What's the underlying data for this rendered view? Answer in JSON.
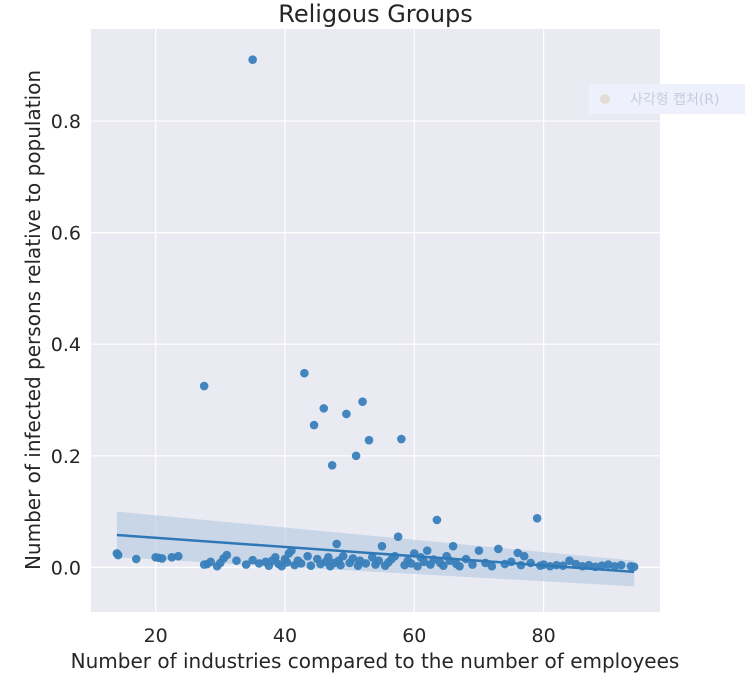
{
  "chart_data": {
    "type": "scatter",
    "title": "Religous Groups",
    "xlabel": "Number of industries compared to the number of employees",
    "ylabel": "Number of infected persons relative to population",
    "xlim": [
      10,
      98
    ],
    "ylim": [
      -0.08,
      0.965
    ],
    "xticks": [
      20,
      40,
      60,
      80
    ],
    "yticks": [
      0.0,
      0.2,
      0.4,
      0.6,
      0.8
    ],
    "ytick_labels": [
      "0.0",
      "0.2",
      "0.4",
      "0.6",
      "0.8"
    ],
    "grid": true,
    "colors": {
      "point": "#3a7fba",
      "line": "#2f78b6",
      "band": "#b9cde3",
      "background": "#eaeaf2",
      "grid": "#ffffff"
    },
    "regression": {
      "x": [
        14,
        94
      ],
      "y": [
        0.058,
        -0.008
      ],
      "ci_lower": [
        0.018,
        -0.034
      ],
      "ci_upper": [
        0.1,
        0.012
      ]
    },
    "points": [
      {
        "x": 14,
        "y": 0.025
      },
      {
        "x": 14.2,
        "y": 0.022
      },
      {
        "x": 17,
        "y": 0.015
      },
      {
        "x": 20,
        "y": 0.018
      },
      {
        "x": 20.5,
        "y": 0.017
      },
      {
        "x": 21,
        "y": 0.016
      },
      {
        "x": 22.5,
        "y": 0.018
      },
      {
        "x": 23.5,
        "y": 0.02
      },
      {
        "x": 27.5,
        "y": 0.325
      },
      {
        "x": 27.5,
        "y": 0.005
      },
      {
        "x": 28,
        "y": 0.006
      },
      {
        "x": 28.5,
        "y": 0.01
      },
      {
        "x": 29.5,
        "y": 0.002
      },
      {
        "x": 30,
        "y": 0.008
      },
      {
        "x": 30.5,
        "y": 0.016
      },
      {
        "x": 31,
        "y": 0.022
      },
      {
        "x": 32.5,
        "y": 0.012
      },
      {
        "x": 34,
        "y": 0.005
      },
      {
        "x": 35,
        "y": 0.91
      },
      {
        "x": 35,
        "y": 0.013
      },
      {
        "x": 36,
        "y": 0.007
      },
      {
        "x": 37,
        "y": 0.01
      },
      {
        "x": 37.5,
        "y": 0.003
      },
      {
        "x": 38,
        "y": 0.012
      },
      {
        "x": 38.5,
        "y": 0.018
      },
      {
        "x": 39,
        "y": 0.006
      },
      {
        "x": 39.5,
        "y": 0.002
      },
      {
        "x": 40,
        "y": 0.015
      },
      {
        "x": 40.3,
        "y": 0.009
      },
      {
        "x": 40.6,
        "y": 0.025
      },
      {
        "x": 41,
        "y": 0.03
      },
      {
        "x": 41.5,
        "y": 0.004
      },
      {
        "x": 42,
        "y": 0.012
      },
      {
        "x": 42.5,
        "y": 0.007
      },
      {
        "x": 43,
        "y": 0.348
      },
      {
        "x": 43.5,
        "y": 0.02
      },
      {
        "x": 44,
        "y": 0.003
      },
      {
        "x": 44.5,
        "y": 0.255
      },
      {
        "x": 45,
        "y": 0.015
      },
      {
        "x": 45.5,
        "y": 0.006
      },
      {
        "x": 46,
        "y": 0.285
      },
      {
        "x": 46.3,
        "y": 0.01
      },
      {
        "x": 46.7,
        "y": 0.018
      },
      {
        "x": 47,
        "y": 0.002
      },
      {
        "x": 47.3,
        "y": 0.183
      },
      {
        "x": 47.6,
        "y": 0.008
      },
      {
        "x": 48,
        "y": 0.042
      },
      {
        "x": 48.3,
        "y": 0.012
      },
      {
        "x": 48.6,
        "y": 0.004
      },
      {
        "x": 49,
        "y": 0.02
      },
      {
        "x": 49.5,
        "y": 0.275
      },
      {
        "x": 50,
        "y": 0.008
      },
      {
        "x": 50.5,
        "y": 0.016
      },
      {
        "x": 51,
        "y": 0.2
      },
      {
        "x": 51.3,
        "y": 0.003
      },
      {
        "x": 51.6,
        "y": 0.012
      },
      {
        "x": 52,
        "y": 0.297
      },
      {
        "x": 52.5,
        "y": 0.007
      },
      {
        "x": 53,
        "y": 0.228
      },
      {
        "x": 53.5,
        "y": 0.018
      },
      {
        "x": 54,
        "y": 0.005
      },
      {
        "x": 54.5,
        "y": 0.012
      },
      {
        "x": 55,
        "y": 0.038
      },
      {
        "x": 55.5,
        "y": 0.003
      },
      {
        "x": 56,
        "y": 0.009
      },
      {
        "x": 56.5,
        "y": 0.015
      },
      {
        "x": 57,
        "y": 0.02
      },
      {
        "x": 57.5,
        "y": 0.055
      },
      {
        "x": 58,
        "y": 0.23
      },
      {
        "x": 58.5,
        "y": 0.004
      },
      {
        "x": 59,
        "y": 0.012
      },
      {
        "x": 59.5,
        "y": 0.007
      },
      {
        "x": 60,
        "y": 0.025
      },
      {
        "x": 60.5,
        "y": 0.002
      },
      {
        "x": 61,
        "y": 0.018
      },
      {
        "x": 61.5,
        "y": 0.01
      },
      {
        "x": 62,
        "y": 0.03
      },
      {
        "x": 62.5,
        "y": 0.005
      },
      {
        "x": 63,
        "y": 0.014
      },
      {
        "x": 63.5,
        "y": 0.085
      },
      {
        "x": 64,
        "y": 0.008
      },
      {
        "x": 64.5,
        "y": 0.003
      },
      {
        "x": 65,
        "y": 0.02
      },
      {
        "x": 65.5,
        "y": 0.012
      },
      {
        "x": 66,
        "y": 0.038
      },
      {
        "x": 66.5,
        "y": 0.006
      },
      {
        "x": 67,
        "y": 0.002
      },
      {
        "x": 68,
        "y": 0.015
      },
      {
        "x": 69,
        "y": 0.005
      },
      {
        "x": 70,
        "y": 0.03
      },
      {
        "x": 71,
        "y": 0.008
      },
      {
        "x": 72,
        "y": 0.002
      },
      {
        "x": 73,
        "y": 0.033
      },
      {
        "x": 74,
        "y": 0.006
      },
      {
        "x": 75,
        "y": 0.01
      },
      {
        "x": 76,
        "y": 0.026
      },
      {
        "x": 76.5,
        "y": 0.004
      },
      {
        "x": 77,
        "y": 0.02
      },
      {
        "x": 78,
        "y": 0.008
      },
      {
        "x": 79,
        "y": 0.088
      },
      {
        "x": 79.5,
        "y": 0.003
      },
      {
        "x": 80,
        "y": 0.005
      },
      {
        "x": 81,
        "y": 0.002
      },
      {
        "x": 82,
        "y": 0.004
      },
      {
        "x": 83,
        "y": 0.003
      },
      {
        "x": 84,
        "y": 0.012
      },
      {
        "x": 85,
        "y": 0.006
      },
      {
        "x": 86,
        "y": 0.002
      },
      {
        "x": 87,
        "y": 0.004
      },
      {
        "x": 88,
        "y": 0.001
      },
      {
        "x": 89,
        "y": 0.003
      },
      {
        "x": 90,
        "y": 0.005
      },
      {
        "x": 91,
        "y": 0.002
      },
      {
        "x": 92,
        "y": 0.004
      },
      {
        "x": 93.5,
        "y": 0.002
      },
      {
        "x": 94,
        "y": 0.001
      }
    ]
  },
  "overlay": {
    "text": "사각형 캡처(R)",
    "icon": "dot-icon",
    "background": "#eef1fb"
  }
}
